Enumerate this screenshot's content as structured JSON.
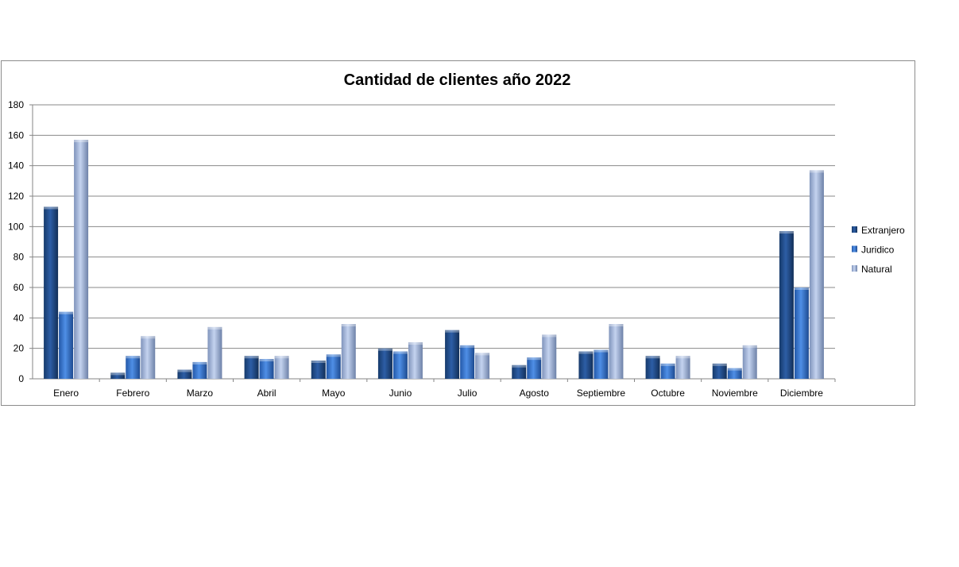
{
  "chart_data": {
    "type": "bar",
    "title": "Cantidad de clientes año 2022",
    "xlabel": "",
    "ylabel": "",
    "ylim": [
      0,
      180
    ],
    "yticks": [
      0,
      20,
      40,
      60,
      80,
      100,
      120,
      140,
      160,
      180
    ],
    "grid": true,
    "legend_position": "right",
    "categories": [
      "Enero",
      "Febrero",
      "Marzo",
      "Abril",
      "Mayo",
      "Junio",
      "Julio",
      "Agosto",
      "Septiembre",
      "Octubre",
      "Noviembre",
      "Diciembre"
    ],
    "series": [
      {
        "name": "Extranjero",
        "color": "#1f4e8c",
        "values": [
          113,
          4,
          6,
          15,
          12,
          20,
          32,
          9,
          18,
          15,
          10,
          97
        ]
      },
      {
        "name": "Juridico",
        "color": "#2e6fcf",
        "values": [
          44,
          15,
          11,
          13,
          16,
          18,
          22,
          14,
          19,
          10,
          7,
          60
        ]
      },
      {
        "name": "Natural",
        "color": "#a4b8e0",
        "values": [
          157,
          28,
          34,
          15,
          36,
          24,
          17,
          29,
          36,
          15,
          22,
          137
        ]
      }
    ]
  }
}
